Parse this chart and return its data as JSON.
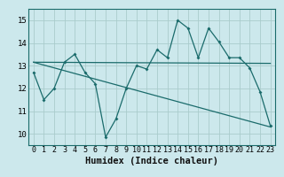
{
  "xlabel": "Humidex (Indice chaleur)",
  "bg_color": "#cce8ec",
  "grid_color": "#aacccc",
  "line_color": "#1a6b6b",
  "spine_color": "#1a6b6b",
  "xlim": [
    -0.5,
    23.5
  ],
  "ylim": [
    9.5,
    15.5
  ],
  "xticks": [
    0,
    1,
    2,
    3,
    4,
    5,
    6,
    7,
    8,
    9,
    10,
    11,
    12,
    13,
    14,
    15,
    16,
    17,
    18,
    19,
    20,
    21,
    22,
    23
  ],
  "yticks": [
    10,
    11,
    12,
    13,
    14,
    15
  ],
  "line1_x": [
    0,
    1,
    2,
    3,
    4,
    5,
    6,
    7,
    8,
    9,
    10,
    11,
    12,
    13,
    14,
    15,
    16,
    17,
    18,
    19,
    20,
    21,
    22,
    23
  ],
  "line1_y": [
    12.7,
    11.5,
    12.0,
    13.15,
    13.5,
    12.7,
    12.2,
    9.85,
    10.65,
    12.0,
    13.0,
    12.85,
    13.7,
    13.35,
    15.0,
    14.65,
    13.35,
    14.65,
    14.05,
    13.35,
    13.35,
    12.9,
    11.85,
    10.35
  ],
  "line2_x": [
    0,
    23
  ],
  "line2_y": [
    13.15,
    13.1
  ],
  "line3_x": [
    0,
    23
  ],
  "line3_y": [
    13.15,
    10.3
  ],
  "marker_size": 2.0,
  "line_width": 0.9,
  "tick_fontsize": 6.0,
  "xlabel_fontsize": 7.5
}
